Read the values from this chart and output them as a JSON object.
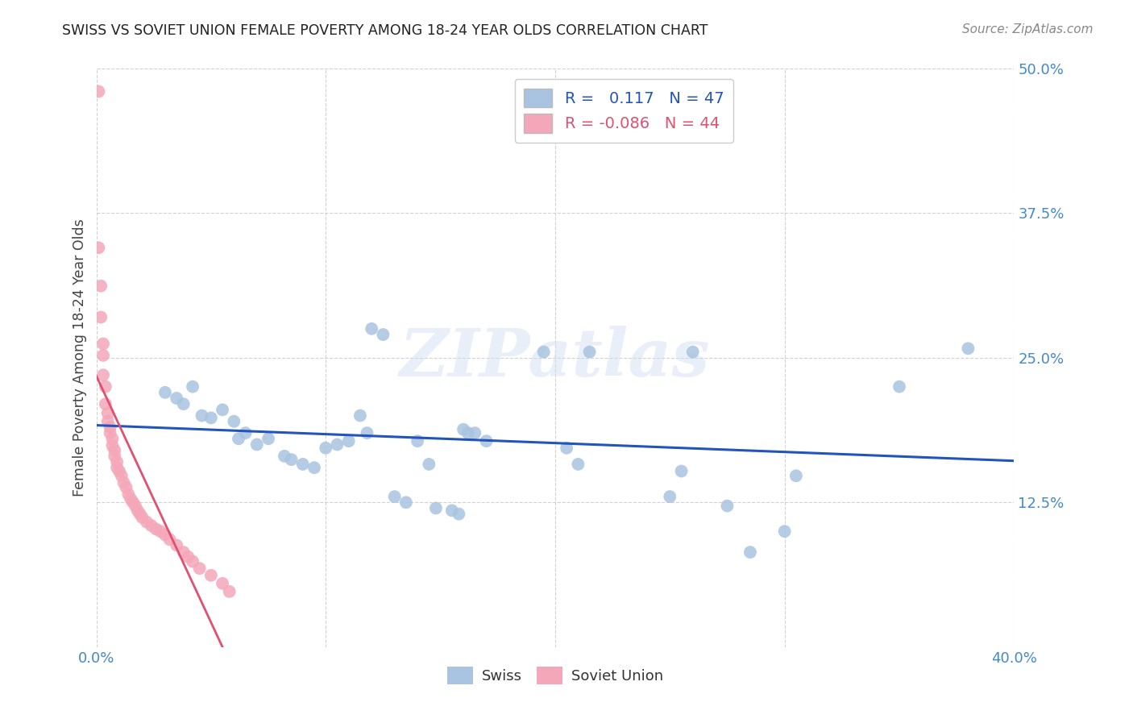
{
  "title": "SWISS VS SOVIET UNION FEMALE POVERTY AMONG 18-24 YEAR OLDS CORRELATION CHART",
  "source": "Source: ZipAtlas.com",
  "ylabel": "Female Poverty Among 18-24 Year Olds",
  "xlim": [
    0.0,
    0.4
  ],
  "ylim": [
    0.0,
    0.5
  ],
  "xticks": [
    0.0,
    0.1,
    0.2,
    0.3,
    0.4
  ],
  "yticks": [
    0.0,
    0.125,
    0.25,
    0.375,
    0.5
  ],
  "swiss_R": 0.117,
  "swiss_N": 47,
  "soviet_R": -0.086,
  "soviet_N": 44,
  "swiss_color": "#a8c4e0",
  "soviet_color": "#f4a7b9",
  "swiss_line_color": "#2255bb",
  "soviet_line_color": "#e05070",
  "background_color": "#ffffff",
  "grid_color": "#cccccc",
  "watermark_text": "ZIPatlas",
  "swiss_x": [
    0.03,
    0.035,
    0.038,
    0.042,
    0.046,
    0.05,
    0.055,
    0.06,
    0.062,
    0.065,
    0.07,
    0.075,
    0.082,
    0.085,
    0.09,
    0.095,
    0.1,
    0.105,
    0.11,
    0.115,
    0.118,
    0.12,
    0.125,
    0.13,
    0.135,
    0.14,
    0.145,
    0.148,
    0.155,
    0.158,
    0.16,
    0.162,
    0.165,
    0.17,
    0.195,
    0.205,
    0.21,
    0.215,
    0.25,
    0.255,
    0.26,
    0.275,
    0.285,
    0.3,
    0.305,
    0.35,
    0.38
  ],
  "swiss_y": [
    0.22,
    0.215,
    0.21,
    0.225,
    0.2,
    0.198,
    0.205,
    0.195,
    0.18,
    0.185,
    0.175,
    0.18,
    0.165,
    0.162,
    0.158,
    0.155,
    0.172,
    0.175,
    0.178,
    0.2,
    0.185,
    0.275,
    0.27,
    0.13,
    0.125,
    0.178,
    0.158,
    0.12,
    0.118,
    0.115,
    0.188,
    0.185,
    0.185,
    0.178,
    0.255,
    0.172,
    0.158,
    0.255,
    0.13,
    0.152,
    0.255,
    0.122,
    0.082,
    0.1,
    0.148,
    0.225,
    0.258
  ],
  "soviet_x": [
    0.001,
    0.001,
    0.002,
    0.002,
    0.003,
    0.003,
    0.003,
    0.004,
    0.004,
    0.005,
    0.005,
    0.006,
    0.006,
    0.007,
    0.007,
    0.008,
    0.008,
    0.009,
    0.009,
    0.01,
    0.011,
    0.012,
    0.013,
    0.014,
    0.015,
    0.016,
    0.017,
    0.018,
    0.019,
    0.02,
    0.022,
    0.024,
    0.026,
    0.028,
    0.03,
    0.032,
    0.035,
    0.038,
    0.04,
    0.042,
    0.045,
    0.05,
    0.055,
    0.058
  ],
  "soviet_y": [
    0.48,
    0.345,
    0.312,
    0.285,
    0.262,
    0.252,
    0.235,
    0.225,
    0.21,
    0.202,
    0.195,
    0.19,
    0.185,
    0.18,
    0.174,
    0.17,
    0.165,
    0.16,
    0.155,
    0.152,
    0.148,
    0.142,
    0.138,
    0.132,
    0.128,
    0.125,
    0.122,
    0.118,
    0.115,
    0.112,
    0.108,
    0.105,
    0.102,
    0.1,
    0.097,
    0.093,
    0.088,
    0.082,
    0.078,
    0.074,
    0.068,
    0.062,
    0.055,
    0.048
  ]
}
